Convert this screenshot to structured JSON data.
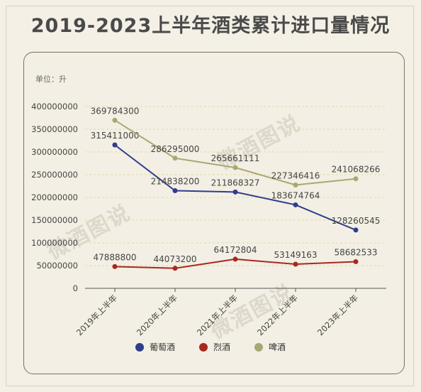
{
  "title": "2019-2023上半年酒类累计进口量情况",
  "unit_label": "单位：升",
  "watermark": "微酒图说",
  "colors": {
    "wine": "#2e3e8c",
    "spirits": "#a8281e",
    "beer": "#a9a872",
    "grid": "#e3d8a8",
    "axis": "#555555",
    "text": "#444444"
  },
  "chart_data": {
    "type": "line",
    "categories": [
      "2019年上半年",
      "2020年上半年",
      "2021年上半年",
      "2022年上半年",
      "2023年上半年"
    ],
    "series": [
      {
        "name": "葡萄酒",
        "values": [
          315411000,
          214838200,
          211868327,
          183674764,
          128260545
        ]
      },
      {
        "name": "烈酒",
        "values": [
          47888800,
          44073200,
          64172804,
          53149163,
          58682533
        ]
      },
      {
        "name": "啤酒",
        "values": [
          369784300,
          286295000,
          265661111,
          227346416,
          241068266
        ]
      }
    ],
    "ylim": [
      0,
      400000000
    ],
    "yticks": [
      "400000000",
      "350000000",
      "300000000",
      "250000000",
      "200000000",
      "150000000",
      "100000000",
      "50000000",
      "0"
    ],
    "grid": true,
    "legend": "bottom"
  }
}
